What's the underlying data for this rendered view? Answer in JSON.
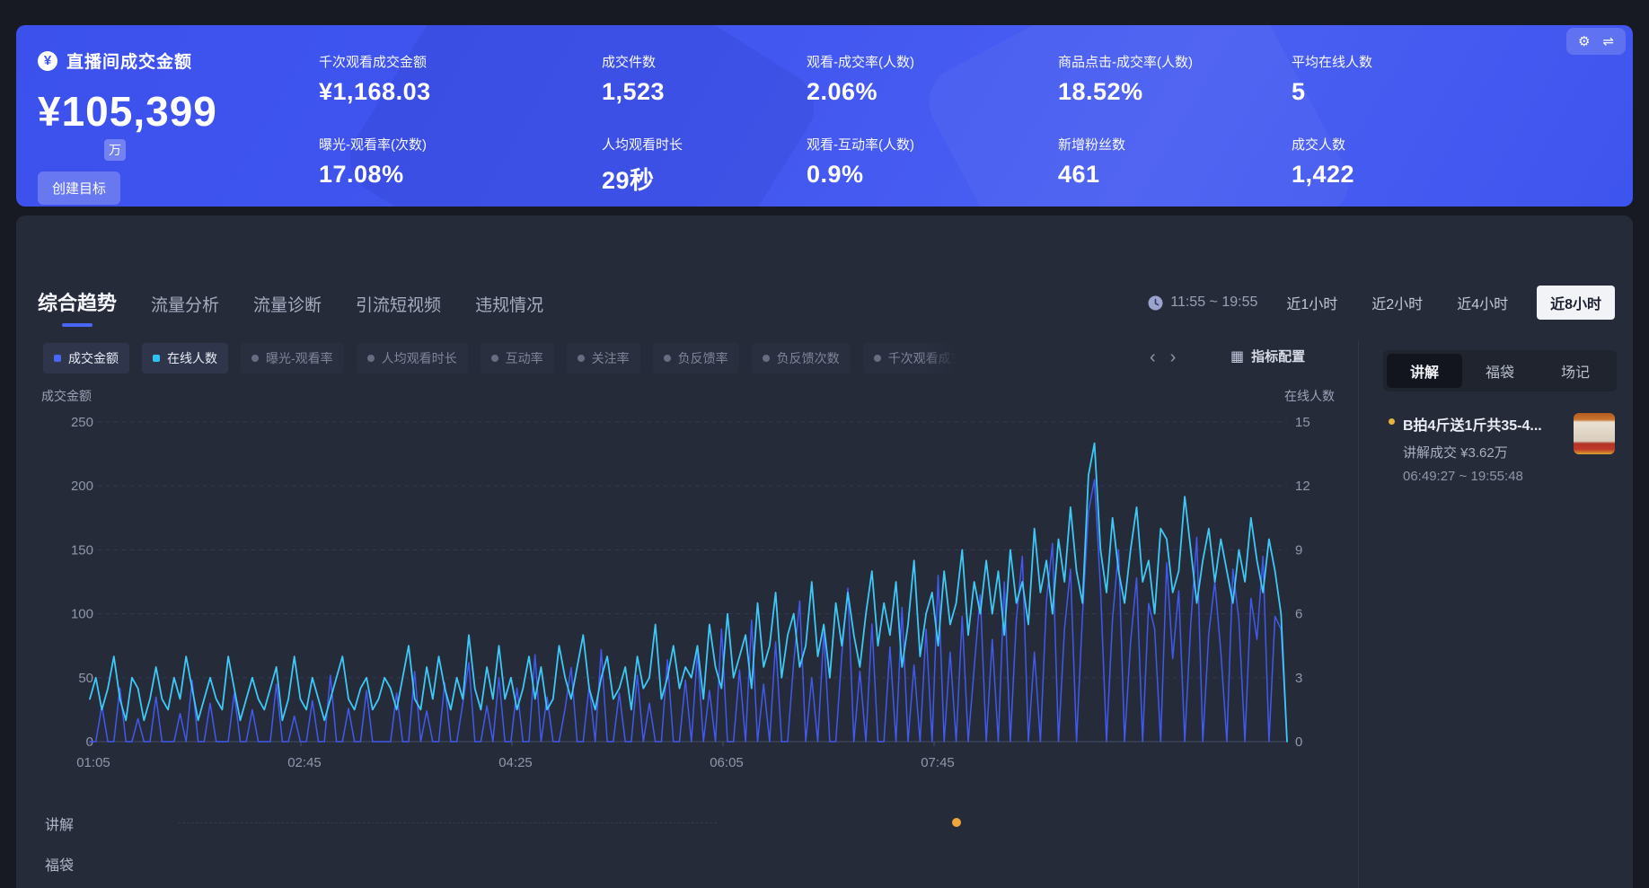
{
  "banner": {
    "title": "直播间成交金额",
    "main_value": "¥105,399",
    "main_unit": "万",
    "create_goal_label": "创建目标",
    "metrics": [
      {
        "label": "千次观看成交金额",
        "value": "¥1,168.03"
      },
      {
        "label": "成交件数",
        "value": "1,523"
      },
      {
        "label": "观看-成交率(人数)",
        "value": "2.06%"
      },
      {
        "label": "商品点击-成交率(人数)",
        "value": "18.52%"
      },
      {
        "label": "平均在线人数",
        "value": "5"
      },
      {
        "label": "曝光-观看率(次数)",
        "value": "17.08%"
      },
      {
        "label": "人均观看时长",
        "value": "29秒"
      },
      {
        "label": "观看-互动率(人数)",
        "value": "0.9%"
      },
      {
        "label": "新增粉丝数",
        "value": "461"
      },
      {
        "label": "成交人数",
        "value": "1,422"
      }
    ]
  },
  "icons": {
    "yen": "¥",
    "gear": "⚙",
    "swap": "⇌",
    "prev": "‹",
    "next": "›",
    "config": "▦"
  },
  "nav": {
    "tabs": [
      "综合趋势",
      "流量分析",
      "流量诊断",
      "引流短视频",
      "违规情况"
    ],
    "active_tab": 0
  },
  "time_range": {
    "display": "11:55 ~ 19:55",
    "options": [
      "近1小时",
      "近2小时",
      "近4小时",
      "近8小时"
    ],
    "active": 3
  },
  "filters": {
    "chips": [
      {
        "label": "成交金额",
        "dot": "#4866f2",
        "active": true
      },
      {
        "label": "在线人数",
        "dot": "#31c2f4",
        "active": true
      },
      {
        "label": "曝光-观看率",
        "dot": "#666d82",
        "active": false
      },
      {
        "label": "人均观看时长",
        "dot": "#666d82",
        "active": false
      },
      {
        "label": "互动率",
        "dot": "#666d82",
        "active": false
      },
      {
        "label": "关注率",
        "dot": "#666d82",
        "active": false
      },
      {
        "label": "负反馈率",
        "dot": "#666d82",
        "active": false
      },
      {
        "label": "负反馈次数",
        "dot": "#666d82",
        "active": false
      },
      {
        "label": "千次观看成交金额",
        "dot": "#666d82",
        "active": false,
        "truncated": true
      }
    ],
    "config_label": "指标配置"
  },
  "chart_data": {
    "type": "line",
    "x_ticks": [
      "01:05",
      "02:45",
      "04:25",
      "06:05",
      "07:45"
    ],
    "y_left": {
      "label": "成交金额",
      "ticks": [
        250,
        200,
        150,
        100,
        50,
        0
      ],
      "range": [
        0,
        250
      ]
    },
    "y_right": {
      "label": "在线人数",
      "ticks": [
        15,
        12,
        9,
        6,
        3,
        0
      ],
      "range": [
        0,
        15
      ]
    },
    "grid": "dashed-horizontal",
    "legend_position": "filter-chips",
    "series": [
      {
        "name": "成交金额",
        "axis": "left",
        "color": "#4159ee",
        "values": [
          0,
          0,
          28,
          0,
          0,
          42,
          0,
          0,
          18,
          0,
          0,
          35,
          0,
          0,
          0,
          22,
          0,
          48,
          0,
          0,
          30,
          0,
          0,
          0,
          38,
          0,
          0,
          25,
          0,
          0,
          0,
          45,
          0,
          0,
          20,
          0,
          0,
          32,
          0,
          0,
          52,
          0,
          0,
          26,
          0,
          0,
          40,
          0,
          0,
          0,
          0,
          38,
          0,
          0,
          55,
          0,
          24,
          0,
          0,
          46,
          0,
          0,
          30,
          62,
          0,
          0,
          28,
          0,
          50,
          0,
          0,
          42,
          0,
          0,
          68,
          0,
          35,
          0,
          0,
          26,
          58,
          0,
          0,
          44,
          0,
          72,
          0,
          0,
          38,
          0,
          0,
          52,
          0,
          30,
          0,
          0,
          64,
          0,
          0,
          48,
          0,
          70,
          0,
          40,
          0,
          88,
          0,
          0,
          56,
          0,
          95,
          0,
          45,
          0,
          78,
          0,
          0,
          62,
          110,
          0,
          50,
          0,
          85,
          0,
          0,
          68,
          120,
          0,
          55,
          0,
          92,
          0,
          0,
          74,
          0,
          105,
          0,
          60,
          0,
          88,
          0,
          130,
          0,
          70,
          0,
          98,
          0,
          58,
          115,
          0,
          80,
          0,
          125,
          0,
          95,
          145,
          0,
          70,
          0,
          110,
          155,
          0,
          88,
          135,
          0,
          100,
          180,
          205,
          120,
          0,
          96,
          150,
          0,
          78,
          128,
          0,
          108,
          88,
          0,
          140,
          65,
          118,
          0,
          92,
          160,
          0,
          85,
          125,
          70,
          0,
          135,
          95,
          0,
          112,
          80,
          145,
          0,
          98,
          88,
          0
        ]
      },
      {
        "name": "在线人数",
        "axis": "right",
        "color": "#3ec8f5",
        "values": [
          2,
          3,
          1.5,
          2.5,
          4,
          2,
          1,
          3,
          2.5,
          1,
          2,
          3.5,
          2,
          1.5,
          3,
          2,
          4,
          2.5,
          1,
          2,
          3,
          2,
          1.5,
          4,
          2.5,
          1,
          2,
          3,
          2,
          1.5,
          2.5,
          3.5,
          1,
          2,
          4,
          2,
          1.5,
          3,
          2,
          1,
          2,
          3,
          4,
          2,
          1.5,
          2.5,
          3,
          1.5,
          2,
          3,
          2.5,
          1.5,
          3,
          4.5,
          2,
          1.5,
          3.5,
          2,
          4,
          2.5,
          1.5,
          3,
          2,
          5,
          2.5,
          1.5,
          3.5,
          2,
          4.5,
          2,
          3,
          1.5,
          2.5,
          4,
          2,
          3.5,
          1.5,
          2,
          4.5,
          3,
          2,
          3.5,
          5,
          2.5,
          1.5,
          3,
          4,
          2,
          2.5,
          3.5,
          1.5,
          4,
          2.5,
          3,
          5.5,
          2,
          3,
          4.5,
          2.5,
          3.5,
          3,
          4.5,
          2,
          5.5,
          3.5,
          2.5,
          6,
          3,
          4,
          5,
          2.5,
          6.5,
          3.5,
          4.5,
          7,
          3,
          5,
          6,
          3.5,
          4.5,
          7.5,
          4,
          5.5,
          3,
          6.5,
          4.5,
          7,
          5,
          3.5,
          6,
          8,
          4.5,
          6.5,
          5,
          7.5,
          3.5,
          5.5,
          8.5,
          4,
          6,
          7,
          4.5,
          8,
          5.5,
          6.5,
          9,
          5,
          7.5,
          6,
          8.5,
          6,
          8,
          5,
          9,
          6.5,
          7.5,
          5.5,
          10,
          7,
          8.5,
          6,
          9.5,
          7.5,
          11,
          8,
          6.5,
          12.5,
          14,
          9,
          7,
          10.5,
          8,
          6.5,
          9,
          11,
          7.5,
          8.5,
          6,
          10,
          9.5,
          7,
          8,
          11.5,
          9,
          6.5,
          8.5,
          10,
          7.5,
          9.5,
          8,
          6.5,
          9,
          7.5,
          10.5,
          8.5,
          7,
          9.5,
          8,
          6,
          0
        ]
      }
    ]
  },
  "timeline": {
    "rows": [
      {
        "label": "讲解",
        "marker": {
          "color": "#f0a63e",
          "position": 0.72
        }
      },
      {
        "label": "福袋"
      }
    ]
  },
  "sidebar": {
    "tabs": [
      "讲解",
      "福袋",
      "场记"
    ],
    "active_tab": 0,
    "item": {
      "title": "B拍4斤送1斤共35-4...",
      "deal": "讲解成交 ¥3.62万",
      "time": "06:49:27 ~ 19:55:48",
      "thumb": "product-thumbnail"
    }
  }
}
